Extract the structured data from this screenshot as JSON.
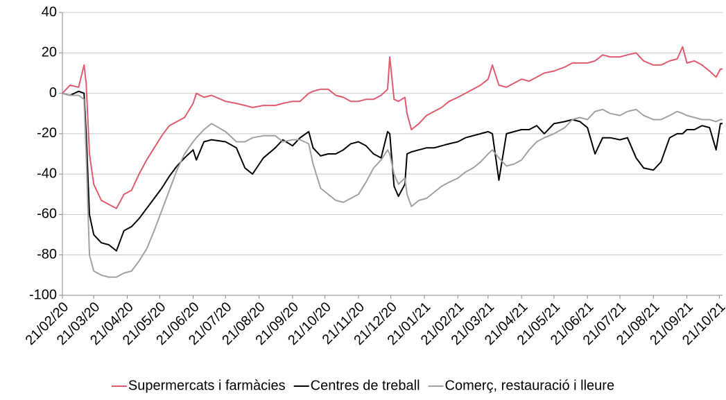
{
  "chart_data": {
    "type": "line",
    "x": [
      "21/02/20",
      "28/02/20",
      "07/03/20",
      "12/03/20",
      "14/03/20",
      "17/03/20",
      "21/03/20",
      "28/03/20",
      "04/04/20",
      "11/04/20",
      "18/04/20",
      "25/04/20",
      "02/05/20",
      "09/05/20",
      "16/05/20",
      "23/05/20",
      "30/05/20",
      "06/06/20",
      "13/06/20",
      "21/06/20",
      "24/06/20",
      "01/07/20",
      "08/07/20",
      "21/07/20",
      "31/07/20",
      "08/08/20",
      "15/08/20",
      "25/08/20",
      "05/09/20",
      "12/09/20",
      "21/09/20",
      "28/09/20",
      "06/10/20",
      "10/10/20",
      "17/10/20",
      "24/10/20",
      "31/10/20",
      "07/11/20",
      "14/11/20",
      "21/11/20",
      "28/11/20",
      "05/12/20",
      "12/12/20",
      "18/12/20",
      "20/12/20",
      "24/12/20",
      "28/12/20",
      "03/01/21",
      "05/01/21",
      "09/01/21",
      "16/01/21",
      "23/01/21",
      "30/01/21",
      "06/02/21",
      "13/02/21",
      "21/02/21",
      "28/02/21",
      "07/03/21",
      "14/03/21",
      "21/03/21",
      "25/03/21",
      "31/03/21",
      "07/04/21",
      "14/04/21",
      "21/04/21",
      "28/04/21",
      "05/05/21",
      "12/05/21",
      "21/05/21",
      "31/05/21",
      "07/06/21",
      "14/06/21",
      "21/06/21",
      "28/06/21",
      "05/07/21",
      "12/07/21",
      "21/07/21",
      "28/07/21",
      "05/08/21",
      "12/08/21",
      "21/08/21",
      "28/08/21",
      "05/09/21",
      "12/09/21",
      "17/09/21",
      "21/09/21",
      "28/09/21",
      "05/10/21",
      "12/10/21",
      "18/10/21",
      "22/10/21",
      "24/10/21"
    ],
    "series": [
      {
        "name": "Supermercats i farmàcies",
        "color": "#e05a6e",
        "values": [
          0,
          4,
          3,
          14,
          5,
          -30,
          -45,
          -53,
          -55,
          -57,
          -50,
          -48,
          -40,
          -33,
          -27,
          -21,
          -16,
          -14,
          -12,
          -5,
          0,
          -2,
          -1,
          -4,
          -5,
          -6,
          -7,
          -6,
          -6,
          -5,
          -4,
          -4,
          0,
          1,
          2,
          2,
          -1,
          -2,
          -4,
          -4,
          -3,
          -3,
          -1,
          2,
          18,
          -3,
          -4,
          -2,
          -10,
          -18,
          -15,
          -11,
          -9,
          -7,
          -4,
          -2,
          0,
          2,
          4,
          7,
          14,
          4,
          3,
          5,
          7,
          6,
          8,
          10,
          11,
          13,
          15,
          15,
          15,
          16,
          19,
          18,
          18,
          19,
          20,
          16,
          14,
          14,
          16,
          17,
          23,
          15,
          16,
          14,
          11,
          8,
          12,
          12
        ]
      },
      {
        "name": "Centres de treball",
        "color": "#000000",
        "values": [
          0,
          -1,
          1,
          0,
          -20,
          -60,
          -70,
          -74,
          -75,
          -78,
          -68,
          -66,
          -62,
          -57,
          -52,
          -47,
          -41,
          -36,
          -32,
          -28,
          -33,
          -24,
          -23,
          -24,
          -27,
          -37,
          -40,
          -32,
          -27,
          -23,
          -26,
          -22,
          -19,
          -27,
          -31,
          -30,
          -30,
          -28,
          -25,
          -24,
          -26,
          -30,
          -32,
          -19,
          -20,
          -46,
          -51,
          -45,
          -30,
          -29,
          -28,
          -27,
          -27,
          -26,
          -25,
          -24,
          -22,
          -21,
          -20,
          -19,
          -20,
          -43,
          -20,
          -19,
          -18,
          -18,
          -16,
          -20,
          -15,
          -14,
          -13,
          -14,
          -17,
          -30,
          -22,
          -22,
          -23,
          -22,
          -32,
          -37,
          -38,
          -34,
          -22,
          -20,
          -20,
          -18,
          -18,
          -16,
          -17,
          -28,
          -15,
          -15
        ]
      },
      {
        "name": "Comerç, restauració i lleure",
        "color": "#a0a0a0",
        "values": [
          0,
          -1,
          -1,
          -3,
          -30,
          -80,
          -88,
          -90,
          -91,
          -91,
          -89,
          -88,
          -83,
          -77,
          -68,
          -58,
          -48,
          -38,
          -30,
          -24,
          -22,
          -18,
          -15,
          -19,
          -24,
          -24,
          -22,
          -21,
          -21,
          -24,
          -23,
          -23,
          -25,
          -35,
          -47,
          -50,
          -53,
          -54,
          -52,
          -50,
          -44,
          -37,
          -33,
          -28,
          -30,
          -40,
          -45,
          -42,
          -50,
          -56,
          -53,
          -52,
          -49,
          -46,
          -44,
          -42,
          -39,
          -37,
          -34,
          -30,
          -28,
          -32,
          -36,
          -35,
          -33,
          -28,
          -24,
          -22,
          -20,
          -17,
          -13,
          -12,
          -13,
          -9,
          -8,
          -10,
          -11,
          -9,
          -8,
          -11,
          -13,
          -13,
          -11,
          -9,
          -10,
          -11,
          -12,
          -13,
          -13,
          -14,
          -13,
          -13
        ]
      }
    ],
    "xlim": [
      "21/02/20",
      "24/10/21"
    ],
    "xticks": [
      "21/02/20",
      "21/03/20",
      "21/04/20",
      "21/05/20",
      "21/06/20",
      "21/07/20",
      "21/08/20",
      "21/09/20",
      "21/10/20",
      "21/11/20",
      "21/12/20",
      "21/01/21",
      "21/02/21",
      "21/03/21",
      "21/04/21",
      "21/05/21",
      "21/06/21",
      "21/07/21",
      "21/08/21",
      "21/09/21",
      "21/10/21"
    ],
    "ylim": [
      -100,
      40
    ],
    "yticks": [
      -100,
      -80,
      -60,
      -40,
      -20,
      0,
      20,
      40
    ],
    "grid": true,
    "legend": "bottom"
  }
}
